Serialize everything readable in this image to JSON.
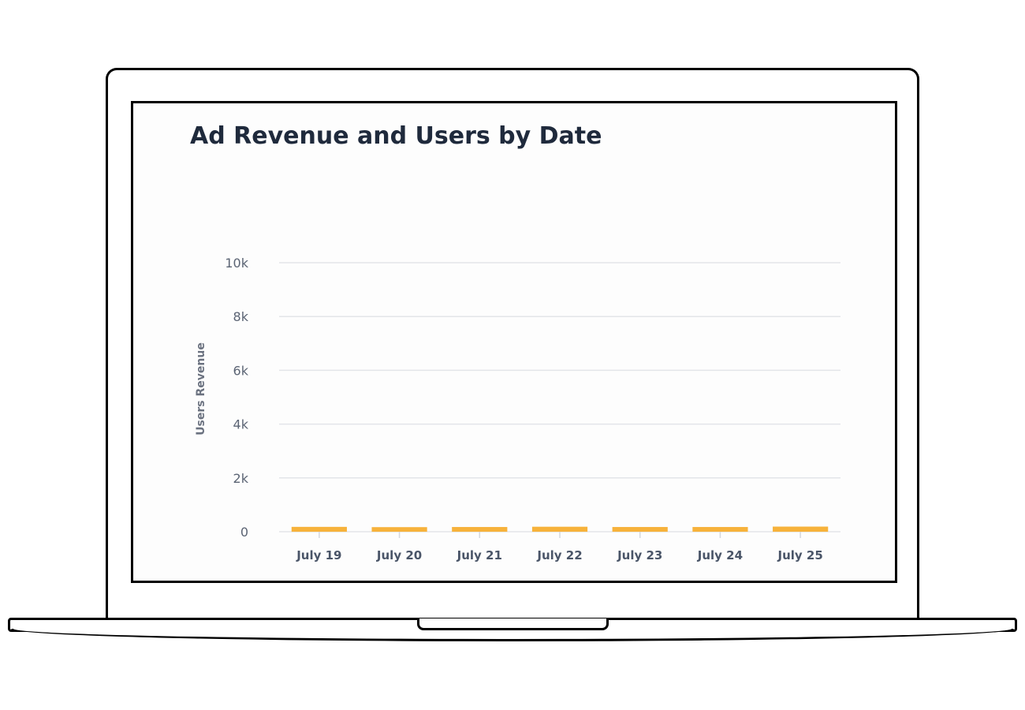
{
  "chart_data": {
    "type": "bar",
    "title": "Ad Revenue and Users by Date",
    "ylabel": "Users Revenue",
    "xlabel": "",
    "categories": [
      "July 19",
      "July 20",
      "July 21",
      "July 22",
      "July 23",
      "July 24",
      "July 25"
    ],
    "series": [
      {
        "values": [
          180,
          170,
          175,
          185,
          175,
          175,
          190
        ]
      }
    ],
    "yticks": [
      "0",
      "2k",
      "4k",
      "6k",
      "8k",
      "10k"
    ],
    "ylim": [
      0,
      10000
    ],
    "grid": true,
    "colors": {
      "bar": "#f7b23b",
      "grid": "#e3e5e9",
      "title": "#1f2a3c"
    }
  }
}
